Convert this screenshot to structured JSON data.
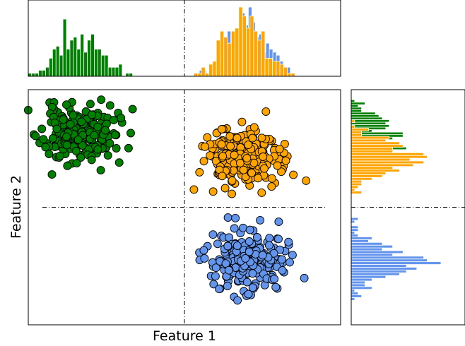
{
  "chart_data": {
    "type": "scatter",
    "xlabel": "Feature 1",
    "ylabel": "Feature 2",
    "xlim": [
      -10,
      10
    ],
    "ylim": [
      -10,
      10
    ],
    "grid": false,
    "reference_lines": {
      "x": 0,
      "y": 0
    },
    "clusters": [
      {
        "color": "#008000",
        "center": [
          -6.8,
          6.2
        ],
        "spread": [
          1.2,
          1.2
        ],
        "count": 200,
        "seed": 11
      },
      {
        "color": "#FFA500",
        "center": [
          3.7,
          4.2
        ],
        "spread": [
          1.2,
          1.2
        ],
        "count": 250,
        "seed": 23
      },
      {
        "color": "#6495ED",
        "center": [
          4.2,
          -4.6
        ],
        "spread": [
          1.2,
          1.2
        ],
        "count": 250,
        "seed": 37
      }
    ],
    "marginal_x": {
      "type": "histogram",
      "bins": 30,
      "order": [
        0,
        2,
        1
      ]
    },
    "marginal_y": {
      "type": "histogram",
      "bins": 30,
      "orientation": "horizontal",
      "order": [
        0,
        1,
        2
      ]
    }
  }
}
